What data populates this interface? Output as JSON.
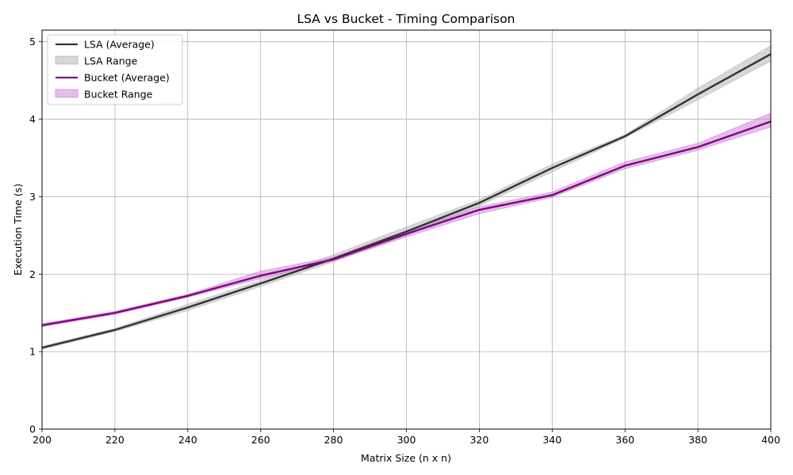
{
  "chart_data": {
    "type": "line",
    "title": "LSA vs Bucket - Timing Comparison",
    "xlabel": "Matrix Size (n x n)",
    "ylabel": "Execution Time (s)",
    "xlim": [
      200,
      400
    ],
    "ylim": [
      0,
      5.15
    ],
    "xticks": [
      200,
      220,
      240,
      260,
      280,
      300,
      320,
      340,
      360,
      380,
      400
    ],
    "yticks": [
      0,
      1,
      2,
      3,
      4,
      5
    ],
    "grid": true,
    "legend_position": "top-left",
    "x": [
      200,
      220,
      240,
      260,
      280,
      300,
      320,
      340,
      360,
      380,
      400
    ],
    "series": [
      {
        "name": "LSA (Average)",
        "range_name": "LSA Range",
        "color": "#333333",
        "fill_color": "#b0b0b0",
        "values": [
          1.05,
          1.28,
          1.57,
          1.88,
          2.2,
          2.55,
          2.92,
          3.37,
          3.78,
          4.32,
          4.84
        ],
        "lower": [
          1.03,
          1.26,
          1.53,
          1.84,
          2.16,
          2.5,
          2.88,
          3.32,
          3.76,
          4.25,
          4.75
        ],
        "upper": [
          1.07,
          1.3,
          1.61,
          1.92,
          2.25,
          2.61,
          2.96,
          3.42,
          3.8,
          4.4,
          4.95
        ]
      },
      {
        "name": "Bucket (Average)",
        "range_name": "Bucket Range",
        "color": "#800080",
        "fill_color": "#c87dd4",
        "values": [
          1.34,
          1.5,
          1.72,
          1.98,
          2.19,
          2.52,
          2.83,
          3.02,
          3.4,
          3.64,
          3.97
        ],
        "lower": [
          1.32,
          1.48,
          1.7,
          1.94,
          2.17,
          2.48,
          2.78,
          2.99,
          3.36,
          3.6,
          3.9
        ],
        "upper": [
          1.36,
          1.52,
          1.74,
          2.04,
          2.22,
          2.56,
          2.87,
          3.06,
          3.45,
          3.69,
          4.08
        ]
      }
    ]
  }
}
